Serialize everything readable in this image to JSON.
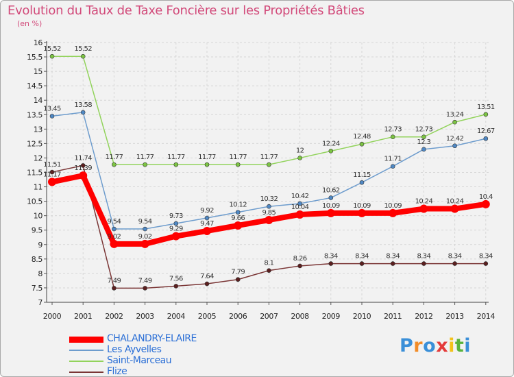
{
  "header": {
    "title": "Evolution du Taux de Taxe Foncière sur les Propriétés Bâties",
    "unit": "(en %)"
  },
  "logo": {
    "text": "Proxiti",
    "colors": [
      "#3a8fd8",
      "#f28c28",
      "#3a8fd8",
      "#e43a3a",
      "#f2c21a",
      "#58b33c",
      "#3a8fd8"
    ]
  },
  "chart_data": {
    "type": "line",
    "title": "Evolution du Taux de Taxe Foncière sur les Propriétés Bâties",
    "ylabel": "(en %)",
    "xlabel": "",
    "ylim": [
      7,
      16
    ],
    "yticks": [
      "7",
      "7.5",
      "8",
      "8.5",
      "9",
      "9.5",
      "10",
      "10.5",
      "11",
      "11.5",
      "12",
      "12.5",
      "13",
      "13.5",
      "14",
      "14.5",
      "15",
      "15.5",
      "16"
    ],
    "categories": [
      "2000",
      "2001",
      "2002",
      "2003",
      "2004",
      "2005",
      "2006",
      "2007",
      "2008",
      "2009",
      "2010",
      "2011",
      "2012",
      "2013",
      "2014"
    ],
    "grid": true,
    "series": [
      {
        "name": "Saint-Marceau",
        "color": "#92d35c",
        "dot": "#7cc443",
        "values": [
          15.52,
          15.52,
          11.77,
          11.77,
          11.77,
          11.77,
          11.77,
          11.77,
          12,
          12.24,
          12.48,
          12.73,
          12.73,
          13.24,
          13.51
        ],
        "labels": [
          "15.52",
          "15.52",
          "11.77",
          "11.77",
          "11.77",
          "11.77",
          "11.77",
          "11.77",
          "12",
          "12.24",
          "12.48",
          "12.73",
          "12.73",
          "13.24",
          "13.51"
        ]
      },
      {
        "name": "Les Ayvelles",
        "color": "#6d9ccd",
        "dot": "#4f88c4",
        "values": [
          13.45,
          13.58,
          9.54,
          9.54,
          9.73,
          9.92,
          10.12,
          10.32,
          10.42,
          10.62,
          11.15,
          11.71,
          12.3,
          12.42,
          12.67
        ],
        "labels": [
          "13.45",
          "13.58",
          "9.54",
          "9.54",
          "9.73",
          "9.92",
          "10.12",
          "10.32",
          "10.42",
          "10.62",
          "11.15",
          "11.71",
          "12.3",
          "12.42",
          "12.67"
        ]
      },
      {
        "name": "Flize",
        "color": "#7a3535",
        "dot": "#5c1f1f",
        "values": [
          11.51,
          11.74,
          7.49,
          7.49,
          7.56,
          7.64,
          7.79,
          8.1,
          8.26,
          8.34,
          8.34,
          8.34,
          8.34,
          8.34,
          8.34
        ],
        "labels": [
          "11.51",
          "11.74",
          "7.49",
          "7.49",
          "7.56",
          "7.64",
          "7.79",
          "8.1",
          "8.26",
          "8.34",
          "8.34",
          "8.34",
          "8.34",
          "8.34",
          "8.34"
        ]
      },
      {
        "name": "CHALANDRY-ELAIRE",
        "color": "#ff0000",
        "dot": "#ff0000",
        "values": [
          11.17,
          11.39,
          9.02,
          9.02,
          9.29,
          9.47,
          9.66,
          9.85,
          10.04,
          10.09,
          10.09,
          10.09,
          10.24,
          10.24,
          10.4
        ],
        "labels": [
          "11.17",
          "11.39",
          "9.02",
          "9.02",
          "9.29",
          "9.47",
          "9.66",
          "9.85",
          "10.04",
          "10.09",
          "10.09",
          "10.09",
          "10.24",
          "10.24",
          "10.4"
        ]
      }
    ],
    "legend": [
      {
        "name": "CHALANDRY-ELAIRE",
        "color": "#ff0000",
        "text_color": "#2b6fd6",
        "thick": true
      },
      {
        "name": "Les Ayvelles",
        "color": "#6d9ccd",
        "text_color": "#2b6fd6",
        "thick": false
      },
      {
        "name": "Saint-Marceau",
        "color": "#92d35c",
        "text_color": "#2b6fd6",
        "thick": false
      },
      {
        "name": "Flize",
        "color": "#7a3535",
        "text_color": "#2b6fd6",
        "thick": false
      }
    ]
  }
}
